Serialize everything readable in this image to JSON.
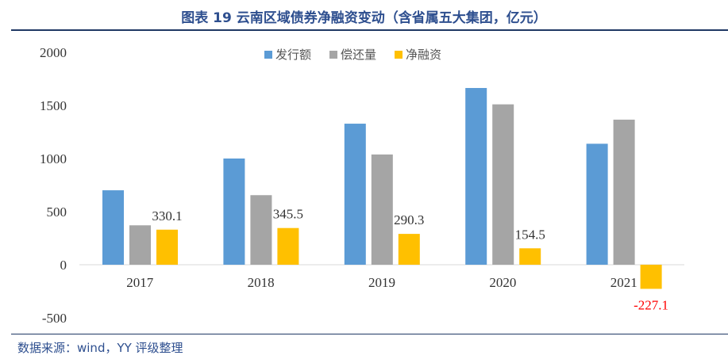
{
  "chart_data": {
    "type": "bar",
    "title": "图表 19  云南区域债券净融资变动（含省属五大集团，亿元）",
    "categories": [
      "2017",
      "2018",
      "2019",
      "2020",
      "2021"
    ],
    "series": [
      {
        "name": "发行额",
        "color": "#5b9bd5",
        "values": [
          701,
          1000,
          1328,
          1664,
          1139
        ]
      },
      {
        "name": "偿还量",
        "color": "#a5a5a5",
        "values": [
          371,
          655,
          1038,
          1510,
          1366
        ]
      },
      {
        "name": "净融资",
        "color": "#ffc000",
        "values": [
          330.1,
          345.5,
          290.3,
          154.5,
          -227.1
        ]
      }
    ],
    "data_labels": {
      "series": "净融资",
      "labels": [
        "330.1",
        "345.5",
        "290.3",
        "154.5",
        "-227.1"
      ],
      "negative_color": "#ff0000"
    },
    "ylim": [
      -500,
      2000
    ],
    "yticks": [
      "-500",
      "0",
      "500",
      "1000",
      "1500",
      "2000"
    ],
    "grid": false,
    "legend": "top-center",
    "xlabel": "",
    "ylabel": ""
  },
  "source": "数据来源：wind，YY 评级整理"
}
